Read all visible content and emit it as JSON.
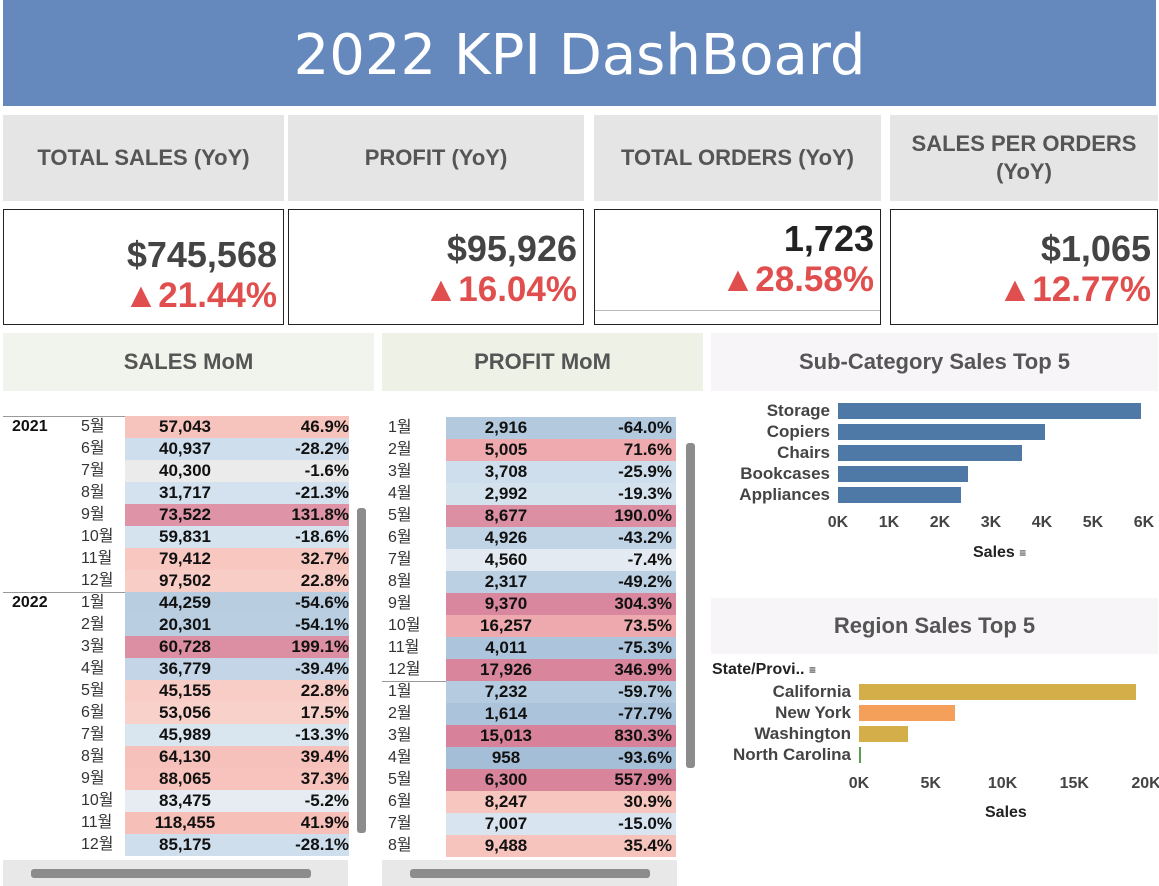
{
  "title": "2022 KPI DashBoard",
  "kpis": [
    {
      "label": "TOTAL SALES (YoY)",
      "value": "$745,568",
      "change": "▲21.44%"
    },
    {
      "label": "PROFIT (YoY)",
      "value": "$95,926",
      "change": "▲16.04%"
    },
    {
      "label": "TOTAL ORDERS (YoY)",
      "value": "1,723",
      "change": "▲28.58%"
    },
    {
      "label": "SALES PER ORDERS (YoY)",
      "value": "$1,065",
      "change": "▲12.77%"
    }
  ],
  "sales_mom": {
    "title": "SALES MoM",
    "years": [
      "2021",
      "2022"
    ],
    "rows": [
      {
        "year": "2021",
        "month": "5월",
        "value": "57,043",
        "pct": "46.9%",
        "color": "#f7c3bd"
      },
      {
        "year": "2021",
        "month": "6월",
        "value": "40,937",
        "pct": "-28.2%",
        "color": "#cfdeec"
      },
      {
        "year": "2021",
        "month": "7월",
        "value": "40,300",
        "pct": "-1.6%",
        "color": "#ebebeb"
      },
      {
        "year": "2021",
        "month": "8월",
        "value": "31,717",
        "pct": "-21.3%",
        "color": "#d3e2ee"
      },
      {
        "year": "2021",
        "month": "9월",
        "value": "73,522",
        "pct": "131.8%",
        "color": "#de93a6"
      },
      {
        "year": "2021",
        "month": "10월",
        "value": "59,831",
        "pct": "-18.6%",
        "color": "#d5e3ef"
      },
      {
        "year": "2021",
        "month": "11월",
        "value": "79,412",
        "pct": "32.7%",
        "color": "#f8c8c0"
      },
      {
        "year": "2021",
        "month": "12월",
        "value": "97,502",
        "pct": "22.8%",
        "color": "#f8cdc5"
      },
      {
        "year": "2022",
        "month": "1월",
        "value": "44,259",
        "pct": "-54.6%",
        "color": "#b8cde0"
      },
      {
        "year": "2022",
        "month": "2월",
        "value": "20,301",
        "pct": "-54.1%",
        "color": "#b9cee1"
      },
      {
        "year": "2022",
        "month": "3월",
        "value": "60,728",
        "pct": "199.1%",
        "color": "#dc8ea2"
      },
      {
        "year": "2022",
        "month": "4월",
        "value": "36,779",
        "pct": "-39.4%",
        "color": "#c3d5e6"
      },
      {
        "year": "2022",
        "month": "5월",
        "value": "45,155",
        "pct": "22.8%",
        "color": "#f8cdc5"
      },
      {
        "year": "2022",
        "month": "6월",
        "value": "53,056",
        "pct": "17.5%",
        "color": "#f8d2ca"
      },
      {
        "year": "2022",
        "month": "7월",
        "value": "45,989",
        "pct": "-13.3%",
        "color": "#d9e6f0"
      },
      {
        "year": "2022",
        "month": "8월",
        "value": "64,130",
        "pct": "39.4%",
        "color": "#f6c1ba"
      },
      {
        "year": "2022",
        "month": "9월",
        "value": "88,065",
        "pct": "37.3%",
        "color": "#f7c3bc"
      },
      {
        "year": "2022",
        "month": "10월",
        "value": "83,475",
        "pct": "-5.2%",
        "color": "#e6ecf1"
      },
      {
        "year": "2022",
        "month": "11월",
        "value": "118,455",
        "pct": "41.9%",
        "color": "#f6bfb8"
      },
      {
        "year": "2022",
        "month": "12월",
        "value": "85,175",
        "pct": "-28.1%",
        "color": "#cfdeec"
      }
    ]
  },
  "profit_mom": {
    "title": "PROFIT MoM",
    "rows": [
      {
        "month": "1월",
        "value": "2,916",
        "pct": "-64.0%",
        "color": "#b2c9de"
      },
      {
        "month": "2월",
        "value": "5,005",
        "pct": "71.6%",
        "color": "#eeaaae"
      },
      {
        "month": "3월",
        "value": "3,708",
        "pct": "-25.9%",
        "color": "#cfdeec"
      },
      {
        "month": "4월",
        "value": "2,992",
        "pct": "-19.3%",
        "color": "#d4e2ee"
      },
      {
        "month": "5월",
        "value": "8,677",
        "pct": "190.0%",
        "color": "#dc8fa3"
      },
      {
        "month": "6월",
        "value": "4,926",
        "pct": "-43.2%",
        "color": "#c1d4e5"
      },
      {
        "month": "7월",
        "value": "4,560",
        "pct": "-7.4%",
        "color": "#e3eaf1"
      },
      {
        "month": "8월",
        "value": "2,317",
        "pct": "-49.2%",
        "color": "#bcd0e3"
      },
      {
        "month": "9월",
        "value": "9,370",
        "pct": "304.3%",
        "color": "#d9879e"
      },
      {
        "month": "10월",
        "value": "16,257",
        "pct": "73.5%",
        "color": "#eea9ae"
      },
      {
        "month": "11월",
        "value": "4,011",
        "pct": "-75.3%",
        "color": "#adc5dc"
      },
      {
        "month": "12월",
        "value": "17,926",
        "pct": "346.9%",
        "color": "#d9869d"
      },
      {
        "month": "1월",
        "value": "7,232",
        "pct": "-59.7%",
        "color": "#b5cbdf"
      },
      {
        "month": "2월",
        "value": "1,614",
        "pct": "-77.7%",
        "color": "#abc3db"
      },
      {
        "month": "3월",
        "value": "15,013",
        "pct": "830.3%",
        "color": "#d7829a"
      },
      {
        "month": "4월",
        "value": "958",
        "pct": "-93.6%",
        "color": "#a4bed8"
      },
      {
        "month": "5월",
        "value": "6,300",
        "pct": "557.9%",
        "color": "#d8849b"
      },
      {
        "month": "6월",
        "value": "8,247",
        "pct": "30.9%",
        "color": "#f7c6be"
      },
      {
        "month": "7월",
        "value": "7,007",
        "pct": "-15.0%",
        "color": "#d8e5f0"
      },
      {
        "month": "8월",
        "value": "9,488",
        "pct": "35.4%",
        "color": "#f7c4bd"
      }
    ]
  },
  "chart_data": [
    {
      "type": "bar",
      "title": "Sub-Category Sales Top 5",
      "orientation": "horizontal",
      "categories": [
        "Storage",
        "Copiers",
        "Chairs",
        "Bookcases",
        "Appliances"
      ],
      "values": [
        5950,
        4050,
        3600,
        2550,
        2420
      ],
      "xlabel": "Sales",
      "ylabel": "",
      "xlim": [
        0,
        6000
      ],
      "xticks": [
        "0K",
        "1K",
        "2K",
        "3K",
        "4K",
        "5K",
        "6K"
      ],
      "color": "#4e79a7"
    },
    {
      "type": "bar",
      "title": "Region Sales Top 5",
      "orientation": "horizontal",
      "categories": [
        "California",
        "New York",
        "Washington",
        "North Carolina"
      ],
      "values": [
        19300,
        6700,
        3400,
        80
      ],
      "colors": [
        "#d4ae48",
        "#f5a05a",
        "#d4ae48",
        "#59a14f"
      ],
      "xlabel": "Sales",
      "ylabel": "State/Provi..",
      "xlim": [
        0,
        20000
      ],
      "xticks": [
        "0K",
        "5K",
        "10K",
        "15K",
        "20K"
      ]
    }
  ]
}
